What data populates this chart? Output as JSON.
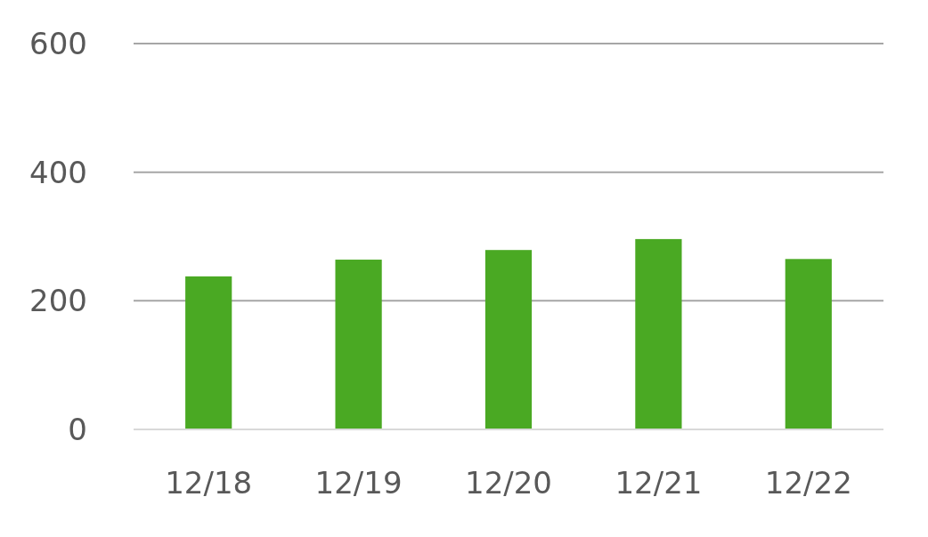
{
  "chart_data": {
    "type": "bar",
    "categories": [
      "12/18",
      "12/19",
      "12/20",
      "12/21",
      "12/22"
    ],
    "values": [
      238,
      264,
      279,
      296,
      265
    ],
    "color": "#4aa923",
    "ylim": [
      0,
      600
    ],
    "yticks": [
      0,
      200,
      400,
      600
    ],
    "grid": "y"
  }
}
